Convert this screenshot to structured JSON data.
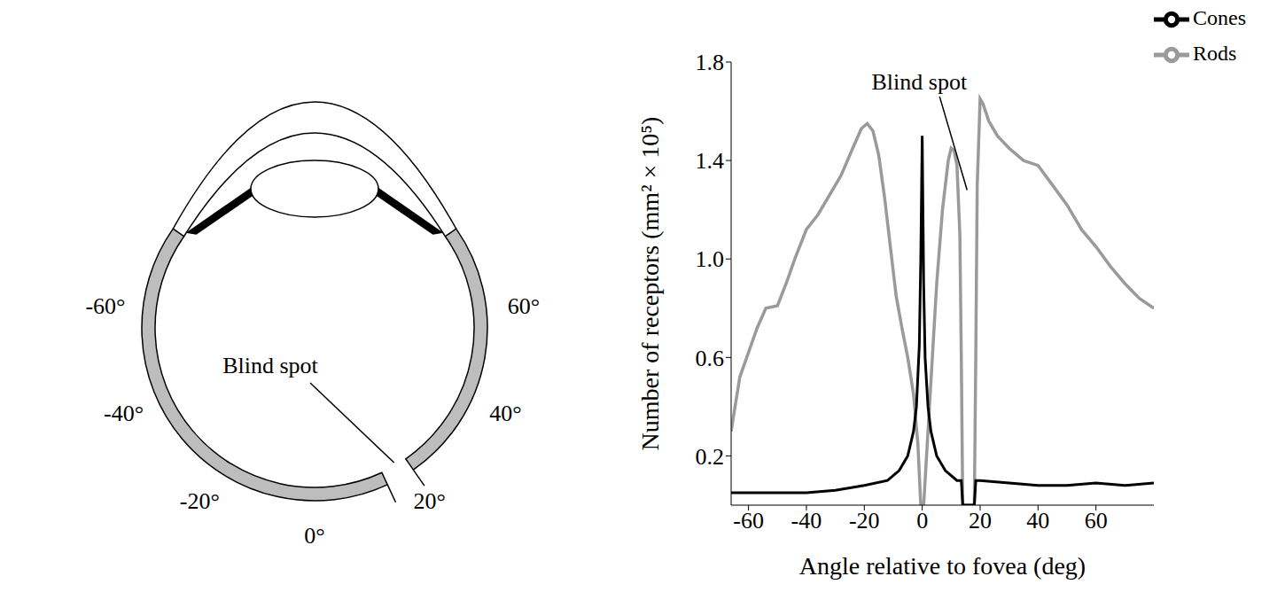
{
  "chart_data": {
    "type": "line",
    "x_label": "Angle relative to fovea (deg)",
    "y_label": "Number of receptors (mm² × 10⁵)",
    "xlim": [
      -66,
      80
    ],
    "xticks": [
      -60,
      -40,
      -20,
      0,
      20,
      40,
      60
    ],
    "ylim": [
      0,
      1.8
    ],
    "yticks": [
      0.2,
      0.6,
      {
        "value": 1,
        "label": "1.0"
      },
      1.4,
      1.8
    ],
    "grid": false,
    "legend": "top-right",
    "annotation": "Blind spot",
    "series": [
      {
        "name": "Rods",
        "color": "#9a9a9a",
        "marker": "none",
        "line_style": "solid",
        "x": [
          -66,
          -63,
          -60,
          -57,
          -54,
          -50,
          -47,
          -44,
          -40,
          -36,
          -32,
          -28,
          -24,
          -21,
          -19,
          -17,
          -15,
          -13,
          -11,
          -9,
          -7,
          -5,
          -3,
          -1.5,
          -0.5,
          0.5,
          1.5,
          3,
          5,
          7,
          9,
          10,
          11,
          12,
          13,
          13.5,
          14,
          18,
          18.5,
          19,
          20,
          21,
          23,
          26,
          30,
          35,
          40,
          45,
          50,
          55,
          60,
          65,
          70,
          75,
          80
        ],
        "values": [
          0.3,
          0.52,
          0.62,
          0.72,
          0.8,
          0.81,
          0.9,
          1.0,
          1.12,
          1.18,
          1.26,
          1.34,
          1.45,
          1.53,
          1.55,
          1.52,
          1.42,
          1.25,
          1.05,
          0.85,
          0.72,
          0.6,
          0.45,
          0.25,
          0,
          0,
          0.2,
          0.5,
          0.9,
          1.2,
          1.4,
          1.45,
          1.44,
          1.38,
          1.1,
          0.6,
          0,
          0,
          0.6,
          1.3,
          1.65,
          1.63,
          1.56,
          1.5,
          1.45,
          1.4,
          1.38,
          1.3,
          1.22,
          1.12,
          1.05,
          0.97,
          0.9,
          0.84,
          0.8
        ]
      },
      {
        "name": "Cones",
        "color": "#000000",
        "marker": "none",
        "line_style": "solid",
        "x": [
          -66,
          -50,
          -40,
          -30,
          -20,
          -12,
          -8,
          -5,
          -3,
          -2,
          -1,
          -0.5,
          0,
          0.5,
          1,
          2,
          3,
          5,
          8,
          12,
          13.5,
          14,
          18,
          18.5,
          20,
          30,
          40,
          50,
          60,
          70,
          80
        ],
        "values": [
          0.05,
          0.05,
          0.05,
          0.06,
          0.08,
          0.1,
          0.14,
          0.2,
          0.3,
          0.4,
          0.65,
          1.0,
          1.5,
          0.9,
          0.6,
          0.4,
          0.3,
          0.2,
          0.14,
          0.1,
          0.1,
          0,
          0,
          0.1,
          0.1,
          0.09,
          0.08,
          0.08,
          0.09,
          0.08,
          0.09
        ]
      }
    ]
  },
  "eye_diagram": {
    "annotation": "Blind spot",
    "blind_spot": [
      15,
      21
    ],
    "angle_labels": [
      {
        "value": -60,
        "label": "-60°"
      },
      {
        "value": 60,
        "label": "60°"
      },
      {
        "value": -40,
        "label": "-40°"
      },
      {
        "value": 40,
        "label": "40°"
      },
      {
        "value": -20,
        "label": "-20°"
      },
      {
        "value": 0,
        "label": "0°"
      },
      {
        "value": 20,
        "label": "20°"
      }
    ]
  }
}
